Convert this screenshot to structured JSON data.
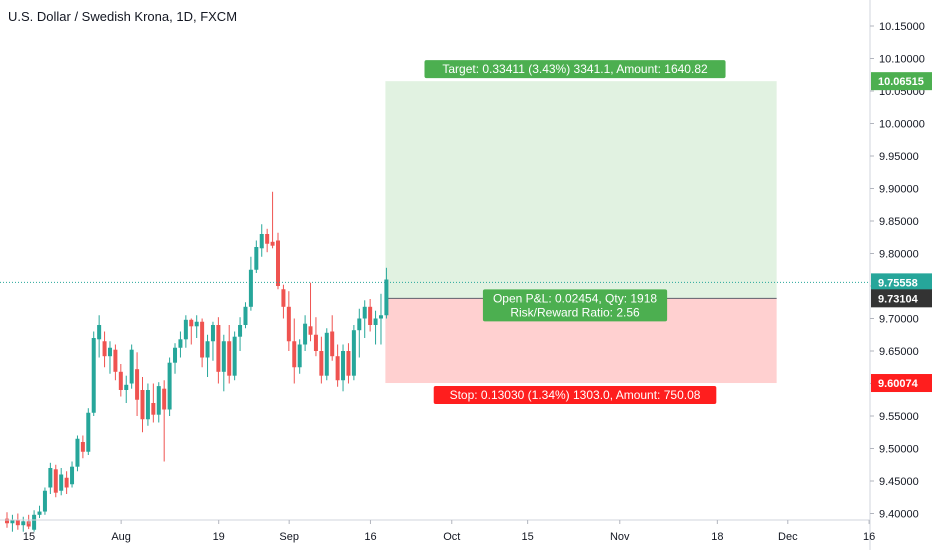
{
  "header": {
    "title": "U.S. Dollar / Swedish Krona, 1D, FXCM"
  },
  "colors": {
    "up": "#26a69a",
    "down": "#ef5350",
    "target_zone": "rgba(76,175,80,0.17)",
    "stop_zone": "rgba(255,82,82,0.27)",
    "target_label": "#4caf50",
    "stop_label": "#ff1e1e",
    "last_price_line": "#26a69a",
    "entry_label": "#333333"
  },
  "chart_data": {
    "type": "candlestick",
    "title": "U.S. Dollar / Swedish Krona, 1D, FXCM",
    "ylim": [
      9.39,
      10.19
    ],
    "y_ticks": [
      "9.40000",
      "9.45000",
      "9.50000",
      "9.55000",
      "9.60000",
      "9.65000",
      "9.70000",
      "9.75000",
      "9.80000",
      "9.85000",
      "9.90000",
      "9.95000",
      "10.00000",
      "10.05000",
      "10.10000",
      "10.15000"
    ],
    "x_ticks": [
      {
        "label": "15",
        "day": 0
      },
      {
        "label": "Aug",
        "day": 17
      },
      {
        "label": "19",
        "day": 35
      },
      {
        "label": "Sep",
        "day": 48
      },
      {
        "label": "16",
        "day": 63
      },
      {
        "label": "Oct",
        "day": 78
      },
      {
        "label": "15",
        "day": 92
      },
      {
        "label": "Nov",
        "day": 109
      },
      {
        "label": "18",
        "day": 127
      },
      {
        "label": "Dec",
        "day": 140
      },
      {
        "label": "16",
        "day": 155
      }
    ],
    "candles": [
      {
        "day": -3,
        "o": 9.395,
        "h": 9.408,
        "l": 9.375,
        "c": 9.38
      },
      {
        "day": 0,
        "o": 9.392,
        "h": 9.402,
        "l": 9.378,
        "c": 9.385
      },
      {
        "day": 1,
        "o": 9.385,
        "h": 9.398,
        "l": 9.372,
        "c": 9.39
      },
      {
        "day": 2,
        "o": 9.39,
        "h": 9.4,
        "l": 9.375,
        "c": 9.382
      },
      {
        "day": 3,
        "o": 9.382,
        "h": 9.395,
        "l": 9.372,
        "c": 9.388
      },
      {
        "day": 4,
        "o": 9.388,
        "h": 9.398,
        "l": 9.376,
        "c": 9.38
      },
      {
        "day": 5,
        "o": 9.375,
        "h": 9.405,
        "l": 9.372,
        "c": 9.398
      },
      {
        "day": 6,
        "o": 9.398,
        "h": 9.412,
        "l": 9.393,
        "c": 9.403
      },
      {
        "day": 7,
        "o": 9.403,
        "h": 9.44,
        "l": 9.398,
        "c": 9.435
      },
      {
        "day": 8,
        "o": 9.44,
        "h": 9.478,
        "l": 9.43,
        "c": 9.47
      },
      {
        "day": 9,
        "o": 9.468,
        "h": 9.475,
        "l": 9.425,
        "c": 9.432
      },
      {
        "day": 10,
        "o": 9.435,
        "h": 9.47,
        "l": 9.428,
        "c": 9.46
      },
      {
        "day": 11,
        "o": 9.455,
        "h": 9.465,
        "l": 9.43,
        "c": 9.44
      },
      {
        "day": 12,
        "o": 9.445,
        "h": 9.48,
        "l": 9.44,
        "c": 9.472
      },
      {
        "day": 13,
        "o": 9.472,
        "h": 9.52,
        "l": 9.465,
        "c": 9.515
      },
      {
        "day": 14,
        "o": 9.51,
        "h": 9.52,
        "l": 9.485,
        "c": 9.495
      },
      {
        "day": 15,
        "o": 9.495,
        "h": 9.562,
        "l": 9.49,
        "c": 9.555
      },
      {
        "day": 16,
        "o": 9.555,
        "h": 9.68,
        "l": 9.55,
        "c": 9.67
      },
      {
        "day": 17,
        "o": 9.668,
        "h": 9.705,
        "l": 9.64,
        "c": 9.69
      },
      {
        "day": 18,
        "o": 9.665,
        "h": 9.68,
        "l": 9.625,
        "c": 9.642
      },
      {
        "day": 19,
        "o": 9.642,
        "h": 9.665,
        "l": 9.615,
        "c": 9.655
      },
      {
        "day": 20,
        "o": 9.652,
        "h": 9.66,
        "l": 9.605,
        "c": 9.618
      },
      {
        "day": 21,
        "o": 9.618,
        "h": 9.63,
        "l": 9.58,
        "c": 9.59
      },
      {
        "day": 22,
        "o": 9.59,
        "h": 9.612,
        "l": 9.57,
        "c": 9.598
      },
      {
        "day": 23,
        "o": 9.6,
        "h": 9.66,
        "l": 9.592,
        "c": 9.652
      },
      {
        "day": 24,
        "o": 9.622,
        "h": 9.648,
        "l": 9.55,
        "c": 9.575
      },
      {
        "day": 25,
        "o": 9.59,
        "h": 9.61,
        "l": 9.525,
        "c": 9.545
      },
      {
        "day": 26,
        "o": 9.545,
        "h": 9.6,
        "l": 9.535,
        "c": 9.59
      },
      {
        "day": 27,
        "o": 9.57,
        "h": 9.6,
        "l": 9.54,
        "c": 9.552
      },
      {
        "day": 28,
        "o": 9.552,
        "h": 9.602,
        "l": 9.54,
        "c": 9.596
      },
      {
        "day": 29,
        "o": 9.592,
        "h": 9.605,
        "l": 9.48,
        "c": 9.56
      },
      {
        "day": 30,
        "o": 9.56,
        "h": 9.64,
        "l": 9.55,
        "c": 9.632
      },
      {
        "day": 31,
        "o": 9.632,
        "h": 9.662,
        "l": 9.615,
        "c": 9.655
      },
      {
        "day": 32,
        "o": 9.655,
        "h": 9.68,
        "l": 9.64,
        "c": 9.668
      },
      {
        "day": 33,
        "o": 9.668,
        "h": 9.705,
        "l": 9.655,
        "c": 9.698
      },
      {
        "day": 34,
        "o": 9.698,
        "h": 9.7,
        "l": 9.66,
        "c": 9.688
      },
      {
        "day": 35,
        "o": 9.688,
        "h": 9.705,
        "l": 9.67,
        "c": 9.695
      },
      {
        "day": 36,
        "o": 9.695,
        "h": 9.7,
        "l": 9.625,
        "c": 9.64
      },
      {
        "day": 37,
        "o": 9.64,
        "h": 9.675,
        "l": 9.61,
        "c": 9.665
      },
      {
        "day": 38,
        "o": 9.665,
        "h": 9.695,
        "l": 9.635,
        "c": 9.69
      },
      {
        "day": 39,
        "o": 9.69,
        "h": 9.702,
        "l": 9.6,
        "c": 9.618
      },
      {
        "day": 40,
        "o": 9.618,
        "h": 9.675,
        "l": 9.588,
        "c": 9.665
      },
      {
        "day": 41,
        "o": 9.665,
        "h": 9.69,
        "l": 9.6,
        "c": 9.612
      },
      {
        "day": 42,
        "o": 9.612,
        "h": 9.68,
        "l": 9.605,
        "c": 9.672
      },
      {
        "day": 43,
        "o": 9.672,
        "h": 9.702,
        "l": 9.65,
        "c": 9.69
      },
      {
        "day": 44,
        "o": 9.69,
        "h": 9.725,
        "l": 9.685,
        "c": 9.718
      },
      {
        "day": 45,
        "o": 9.718,
        "h": 9.795,
        "l": 9.712,
        "c": 9.775
      },
      {
        "day": 46,
        "o": 9.775,
        "h": 9.82,
        "l": 9.77,
        "c": 9.81
      },
      {
        "day": 47,
        "o": 9.808,
        "h": 9.845,
        "l": 9.795,
        "c": 9.83
      },
      {
        "day": 48,
        "o": 9.83,
        "h": 9.838,
        "l": 9.802,
        "c": 9.815
      },
      {
        "day": 49,
        "o": 9.818,
        "h": 9.895,
        "l": 9.808,
        "c": 9.812
      },
      {
        "day": 50,
        "o": 9.82,
        "h": 9.832,
        "l": 9.745,
        "c": 9.75
      },
      {
        "day": 51,
        "o": 9.745,
        "h": 9.752,
        "l": 9.7,
        "c": 9.718
      },
      {
        "day": 52,
        "o": 9.718,
        "h": 9.742,
        "l": 9.65,
        "c": 9.665
      },
      {
        "day": 53,
        "o": 9.665,
        "h": 9.7,
        "l": 9.6,
        "c": 9.625
      },
      {
        "day": 54,
        "o": 9.625,
        "h": 9.668,
        "l": 9.615,
        "c": 9.66
      },
      {
        "day": 55,
        "o": 9.66,
        "h": 9.705,
        "l": 9.65,
        "c": 9.692
      },
      {
        "day": 56,
        "o": 9.688,
        "h": 9.755,
        "l": 9.665,
        "c": 9.675
      },
      {
        "day": 57,
        "o": 9.675,
        "h": 9.702,
        "l": 9.642,
        "c": 9.65
      },
      {
        "day": 58,
        "o": 9.65,
        "h": 9.672,
        "l": 9.6,
        "c": 9.612
      },
      {
        "day": 59,
        "o": 9.612,
        "h": 9.685,
        "l": 9.605,
        "c": 9.678
      },
      {
        "day": 60,
        "o": 9.68,
        "h": 9.705,
        "l": 9.635,
        "c": 9.642
      },
      {
        "day": 61,
        "o": 9.642,
        "h": 9.66,
        "l": 9.595,
        "c": 9.605
      },
      {
        "day": 62,
        "o": 9.605,
        "h": 9.66,
        "l": 9.588,
        "c": 9.65
      },
      {
        "day": 63,
        "o": 9.65,
        "h": 9.662,
        "l": 9.6,
        "c": 9.612
      },
      {
        "day": 64,
        "o": 9.612,
        "h": 9.69,
        "l": 9.605,
        "c": 9.682
      },
      {
        "day": 65,
        "o": 9.682,
        "h": 9.715,
        "l": 9.64,
        "c": 9.7
      },
      {
        "day": 66,
        "o": 9.7,
        "h": 9.728,
        "l": 9.67,
        "c": 9.718
      },
      {
        "day": 67,
        "o": 9.718,
        "h": 9.73,
        "l": 9.68,
        "c": 9.69
      },
      {
        "day": 68,
        "o": 9.69,
        "h": 9.712,
        "l": 9.66,
        "c": 9.7
      },
      {
        "day": 69,
        "o": 9.7,
        "h": 9.738,
        "l": 9.66,
        "c": 9.705
      },
      {
        "day": 70,
        "o": 9.705,
        "h": 9.778,
        "l": 9.7,
        "c": 9.76
      }
    ],
    "last_price": "9.75558",
    "position": {
      "start_day": 70,
      "end_day": 142,
      "entry": 9.73104,
      "entry_label": "9.73104",
      "target": 10.06515,
      "target_label": "10.06515",
      "stop": 9.60074,
      "stop_label": "9.60074",
      "target_text": "Target: 0.33411 (3.43%) 3341.1, Amount: 1640.82",
      "stop_text": "Stop: 0.13030 (1.34%) 1303.0, Amount: 750.08",
      "pnl_text": "Open P&L: 0.02454, Qty: 1918",
      "rr_text": "Risk/Reward Ratio: 2.56"
    }
  }
}
